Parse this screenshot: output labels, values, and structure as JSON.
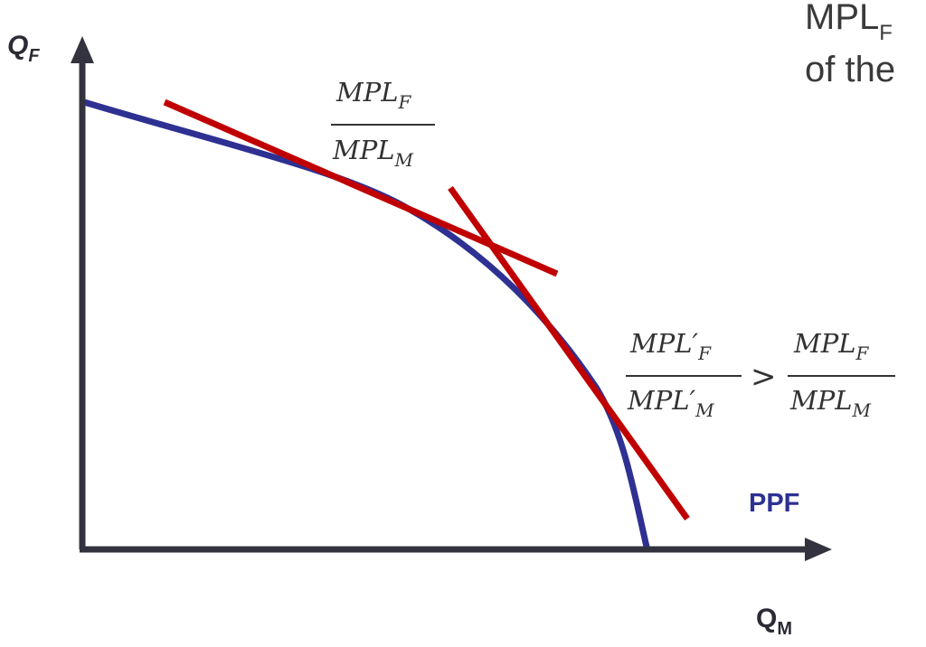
{
  "axes": {
    "y_label": "Q",
    "y_sub": "F",
    "x_label": "Q",
    "x_sub": "M"
  },
  "curve_label": "PPF",
  "slope_label_1": {
    "num_main": "MPL",
    "num_sub": "F",
    "den_main": "MPL",
    "den_sub": "M"
  },
  "slope_label_2": {
    "left_num_main": "MPL′",
    "left_num_sub": "F",
    "left_den_main": "MPL′",
    "left_den_sub": "M",
    "operator": ">",
    "right_num_main": "MPL",
    "right_num_sub": "F",
    "right_den_main": "MPL",
    "right_den_sub": "M"
  },
  "top_text": {
    "line1_main": "MPL",
    "line1_sub": "F",
    "line2": "of the"
  },
  "colors": {
    "axis": "#33333f",
    "curve": "#2e3192",
    "tangent": "#c00000",
    "ppf_label": "#2e3192",
    "text": "#333333"
  }
}
